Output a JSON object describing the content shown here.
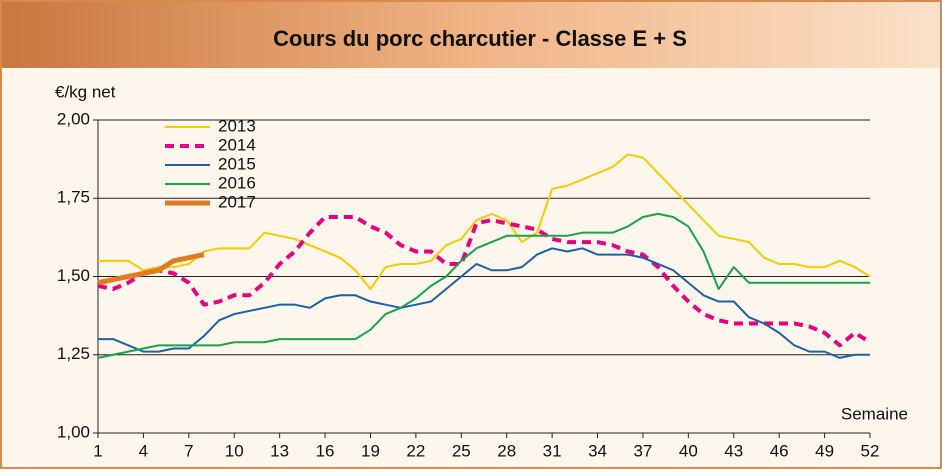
{
  "chart_data": {
    "type": "line",
    "title": "Cours du porc charcutier - Classe E + S",
    "ylabel": "€/kg net",
    "xlabel": "Semaine",
    "x": [
      1,
      2,
      3,
      4,
      5,
      6,
      7,
      8,
      9,
      10,
      11,
      12,
      13,
      14,
      15,
      16,
      17,
      18,
      19,
      20,
      21,
      22,
      23,
      24,
      25,
      26,
      27,
      28,
      29,
      30,
      31,
      32,
      33,
      34,
      35,
      36,
      37,
      38,
      39,
      40,
      41,
      42,
      43,
      44,
      45,
      46,
      47,
      48,
      49,
      50,
      51,
      52
    ],
    "xlim": [
      1,
      52
    ],
    "xticks": [
      1,
      4,
      7,
      10,
      13,
      16,
      19,
      22,
      25,
      28,
      31,
      34,
      37,
      40,
      43,
      46,
      49,
      52
    ],
    "ylim": [
      1,
      2
    ],
    "yticks": [
      {
        "value": 1,
        "label": "1,00"
      },
      {
        "value": 1.25,
        "label": "1,25"
      },
      {
        "value": 1.5,
        "label": "1,50"
      },
      {
        "value": 1.75,
        "label": "1,75"
      },
      {
        "value": 2,
        "label": "2,00"
      }
    ],
    "grid": true,
    "legend": "upper left",
    "series": [
      {
        "name": "2013",
        "color": "#f2cc00",
        "values": [
          1.55,
          1.55,
          1.55,
          1.52,
          1.53,
          1.53,
          1.54,
          1.58,
          1.59,
          1.59,
          1.59,
          1.64,
          1.63,
          1.62,
          1.6,
          1.58,
          1.56,
          1.52,
          1.46,
          1.53,
          1.54,
          1.54,
          1.55,
          1.6,
          1.62,
          1.68,
          1.7,
          1.68,
          1.61,
          1.64,
          1.78,
          1.79,
          1.81,
          1.83,
          1.85,
          1.89,
          1.88,
          1.83,
          1.78,
          1.73,
          1.68,
          1.63,
          1.62,
          1.61,
          1.56,
          1.54,
          1.54,
          1.53,
          1.53,
          1.55,
          1.53,
          1.5
        ]
      },
      {
        "name": "2014",
        "color": "#e6007e",
        "dash": true,
        "values": [
          1.47,
          1.46,
          1.48,
          1.51,
          1.52,
          1.51,
          1.48,
          1.41,
          1.42,
          1.44,
          1.44,
          1.48,
          1.54,
          1.58,
          1.64,
          1.69,
          1.69,
          1.69,
          1.66,
          1.64,
          1.6,
          1.58,
          1.58,
          1.54,
          1.54,
          1.67,
          1.68,
          1.67,
          1.66,
          1.65,
          1.62,
          1.61,
          1.61,
          1.61,
          1.6,
          1.58,
          1.57,
          1.53,
          1.47,
          1.42,
          1.38,
          1.36,
          1.35,
          1.35,
          1.35,
          1.35,
          1.35,
          1.34,
          1.32,
          1.28,
          1.32,
          1.29
        ]
      },
      {
        "name": "2015",
        "color": "#1f5fa8",
        "values": [
          1.3,
          1.3,
          1.28,
          1.26,
          1.26,
          1.27,
          1.27,
          1.31,
          1.36,
          1.38,
          1.39,
          1.4,
          1.41,
          1.41,
          1.4,
          1.43,
          1.44,
          1.44,
          1.42,
          1.41,
          1.4,
          1.41,
          1.42,
          1.46,
          1.5,
          1.54,
          1.52,
          1.52,
          1.53,
          1.57,
          1.59,
          1.58,
          1.59,
          1.57,
          1.57,
          1.57,
          1.56,
          1.54,
          1.52,
          1.48,
          1.44,
          1.42,
          1.42,
          1.37,
          1.35,
          1.32,
          1.28,
          1.26,
          1.26,
          1.24,
          1.25,
          1.25
        ]
      },
      {
        "name": "2016",
        "color": "#1aa34a",
        "values": [
          1.24,
          1.25,
          1.26,
          1.27,
          1.28,
          1.28,
          1.28,
          1.28,
          1.28,
          1.29,
          1.29,
          1.29,
          1.3,
          1.3,
          1.3,
          1.3,
          1.3,
          1.3,
          1.33,
          1.38,
          1.4,
          1.43,
          1.47,
          1.5,
          1.55,
          1.59,
          1.61,
          1.63,
          1.63,
          1.63,
          1.63,
          1.63,
          1.64,
          1.64,
          1.64,
          1.66,
          1.69,
          1.7,
          1.69,
          1.66,
          1.58,
          1.46,
          1.53,
          1.48,
          1.48,
          1.48,
          1.48,
          1.48,
          1.48,
          1.48,
          1.48,
          1.48
        ]
      },
      {
        "name": "2017",
        "color": "#e07b20",
        "width": 5,
        "values": [
          1.48,
          1.49,
          1.5,
          1.51,
          1.52,
          1.55,
          1.56,
          1.57,
          null,
          null,
          null,
          null,
          null,
          null,
          null,
          null,
          null,
          null,
          null,
          null,
          null,
          null,
          null,
          null,
          null,
          null,
          null,
          null,
          null,
          null,
          null,
          null,
          null,
          null,
          null,
          null,
          null,
          null,
          null,
          null,
          null,
          null,
          null,
          null,
          null,
          null,
          null,
          null,
          null,
          null,
          null,
          null
        ]
      }
    ]
  }
}
